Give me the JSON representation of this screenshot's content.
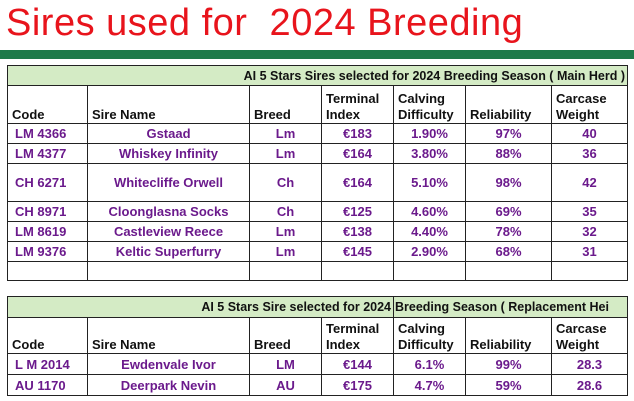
{
  "title": "Sires used for  2024 Breeding",
  "colors": {
    "title": "#e8141c",
    "rule": "#1e7a4a",
    "banner_bg": "#d4ebc5",
    "row_text": "#6b1a8c"
  },
  "main_herd": {
    "banner": "AI  5 Stars Sires selected for 2024 Breeding Season ( Main Herd )",
    "headers": {
      "code": "Code",
      "sire_name": "Sire Name",
      "breed": "Breed",
      "terminal_1": "Terminal",
      "terminal_2": "Index",
      "calving_1": "Calving",
      "calving_2": "Difficulty",
      "reliability": "Reliability",
      "carcase_1": "Carcase",
      "carcase_2": "Weight"
    },
    "rows": [
      {
        "code": "LM 4366",
        "name": "Gstaad",
        "breed": "Lm",
        "index": "€183",
        "calving": "1.90%",
        "reliability": "97%",
        "weight": "40"
      },
      {
        "code": "LM 4377",
        "name": "Whiskey Infinity",
        "breed": "Lm",
        "index": "€164",
        "calving": "3.80%",
        "reliability": "88%",
        "weight": "36"
      },
      {
        "code": "CH 6271",
        "name": "Whitecliffe Orwell",
        "breed": "Ch",
        "index": "€164",
        "calving": "5.10%",
        "reliability": "98%",
        "weight": "42"
      },
      {
        "code": "CH 8971",
        "name": "Cloonglasna Socks",
        "breed": "Ch",
        "index": "€125",
        "calving": "4.60%",
        "reliability": "69%",
        "weight": "35"
      },
      {
        "code": "LM 8619",
        "name": "Castleview Reece",
        "breed": "Lm",
        "index": "€138",
        "calving": "4.40%",
        "reliability": "78%",
        "weight": "32"
      },
      {
        "code": "LM 9376",
        "name": "Keltic Superfurry",
        "breed": "Lm",
        "index": "€145",
        "calving": "2.90%",
        "reliability": "68%",
        "weight": "31"
      }
    ]
  },
  "replacement_herd": {
    "banner_left": "AI  5 Stars Sire selected for 2024",
    "banner_right": "Breeding Season ( Replacement Hei",
    "headers": {
      "code": "Code",
      "sire_name": "Sire Name",
      "breed": "Breed",
      "terminal_1": "Terminal",
      "terminal_2": "Index",
      "calving_1": "Calving",
      "calving_2": "Difficulty",
      "reliability": "Reliability",
      "carcase_1": "Carcase",
      "carcase_2": "Weight"
    },
    "rows": [
      {
        "code": "L M 2014",
        "name": "Ewdenvale Ivor",
        "breed": "LM",
        "index": "€144",
        "calving": "6.1%",
        "reliability": "99%",
        "weight": "28.3"
      },
      {
        "code": "AU 1170",
        "name": "Deerpark Nevin",
        "breed": "AU",
        "index": "€175",
        "calving": "4.7%",
        "reliability": "59%",
        "weight": "28.6"
      }
    ]
  }
}
